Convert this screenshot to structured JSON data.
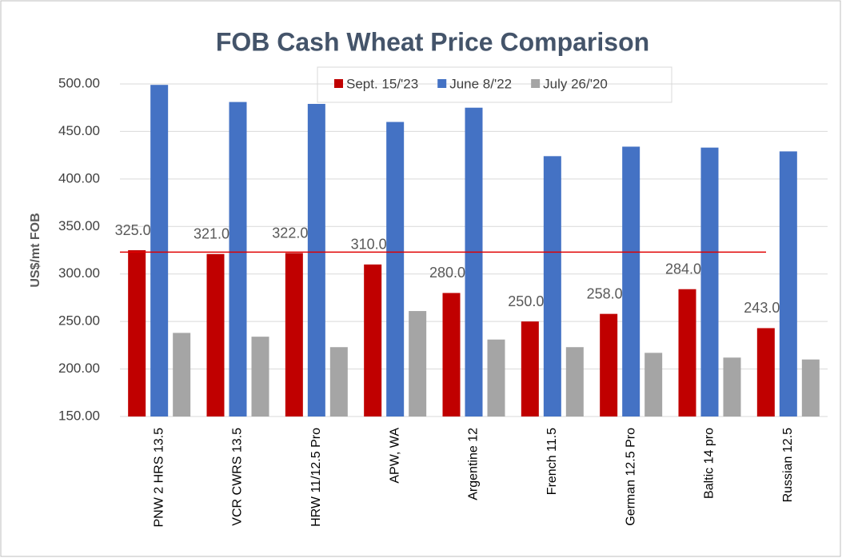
{
  "chart_data": {
    "type": "bar",
    "title": "FOB Cash Wheat Price Comparison",
    "y_axis_label": "US$/mt FOB",
    "categories": [
      "PNW 2 HRS 13.5",
      "VCR CWRS 13.5",
      "HRW 11/12.5 Pro",
      "APW, WA",
      "Argentine  12",
      "French 11.5",
      "German 12.5 Pro",
      "Baltic 14 pro",
      "Russian 12.5"
    ],
    "series": [
      {
        "name": "Sept. 15/'23",
        "color": "#c00000",
        "values": [
          325,
          321,
          322,
          310,
          280,
          250,
          258,
          284,
          243
        ],
        "value_labels": [
          "325.00",
          "321.00",
          "322.00",
          "310.00",
          "280.00",
          "250.00",
          "258.00",
          "284.00",
          "243.00"
        ]
      },
      {
        "name": "June 8/'22",
        "color": "#4472c4",
        "values": [
          499,
          481,
          479,
          460,
          475,
          424,
          434,
          433,
          429
        ]
      },
      {
        "name": "July 26/'20",
        "color": "#a5a5a5",
        "values": [
          238,
          234,
          223,
          261,
          231,
          223,
          217,
          212,
          210
        ]
      }
    ],
    "ylim": [
      150,
      500
    ],
    "yticks": [
      {
        "value": 150,
        "label": "150.00"
      },
      {
        "value": 200,
        "label": "200.00"
      },
      {
        "value": 250,
        "label": "250.00"
      },
      {
        "value": 300,
        "label": "300.00"
      },
      {
        "value": 350,
        "label": "350.00"
      },
      {
        "value": 400,
        "label": "400.00"
      },
      {
        "value": 450,
        "label": "450.00"
      },
      {
        "value": 500,
        "label": "500.00"
      }
    ],
    "grid": true,
    "legend": "top",
    "reference_line": {
      "value": 323,
      "color": "#e00000"
    }
  }
}
